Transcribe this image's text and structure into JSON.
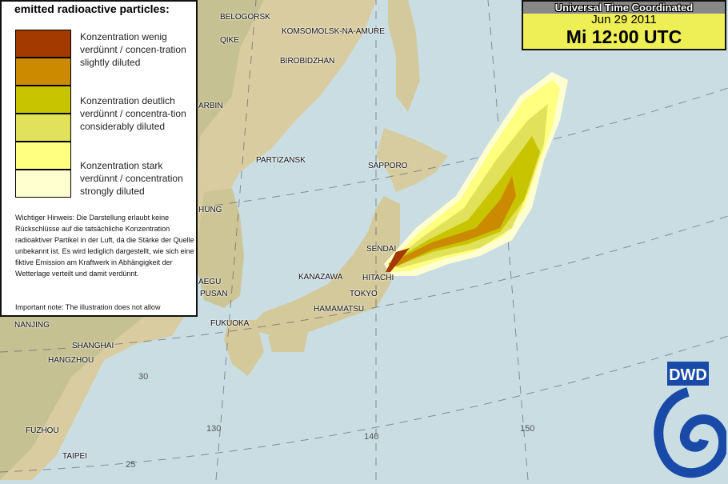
{
  "legend": {
    "title": "emitted radioactive particles:",
    "levels": [
      {
        "label": "Konzentration wenig verdünnt / concen-tration slightly diluted",
        "colors": [
          "#a33a00",
          "#cc8a00"
        ]
      },
      {
        "label": "Konzentration deutlich verdünnt / concentra-tion considerably diluted",
        "colors": [
          "#c8c400",
          "#e2e25a"
        ]
      },
      {
        "label": "Konzentration stark verdünnt / concentration strongly diluted",
        "colors": [
          "#ffff80",
          "#ffffd0"
        ]
      }
    ],
    "note_de": "Wichtiger Hinweis: Die Darstellung erlaubt keine Rückschlüsse auf die tatsächliche Konzentration radioaktiver Partikel in der Luft, da die Stärke der Quelle unbekannt ist. Es wird lediglich dargestellt, wie sich eine fiktive Emission am Kraftwerk in Abhängigkeit der Wetterlage verteilt und damit verdünnt.",
    "note_en": "Important note: The illustration does not allow conclusions on the real concentration of"
  },
  "timebox": {
    "header": "Universal Time Coordinated",
    "date": "Jun 29 2011",
    "time": "Mi 12:00 UTC"
  },
  "cities": [
    "BELOGORSK",
    "QIKE",
    "KOMSOMOLSK-NA-AMURE",
    "BIROBIDZHAN",
    "ARBIN",
    "PARTIZANSK",
    "SAPPORO",
    "HUNG",
    "SENDAI",
    "KANAZAWA",
    "HITACHI",
    "TOKYO",
    "HAMAMATSU",
    "AEGU",
    "PUSAN",
    "FUKUOKA",
    "NANJING",
    "SHANGHAI",
    "HANGZHOU",
    "FUZHOU",
    "TAIPEI"
  ],
  "grid_labels": {
    "lat": [
      "30",
      "25"
    ],
    "lon": [
      "130",
      "140",
      "150"
    ]
  },
  "logo": {
    "text": "DWD",
    "color": "#1a4aa8"
  }
}
